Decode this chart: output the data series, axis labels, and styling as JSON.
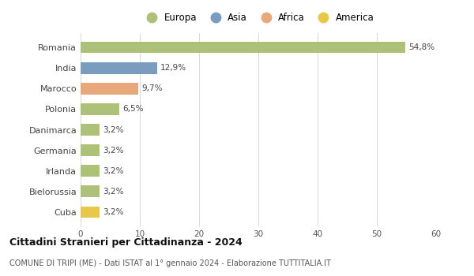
{
  "categories": [
    "Romania",
    "India",
    "Marocco",
    "Polonia",
    "Danimarca",
    "Germania",
    "Irlanda",
    "Bielorussia",
    "Cuba"
  ],
  "values": [
    54.8,
    12.9,
    9.7,
    6.5,
    3.2,
    3.2,
    3.2,
    3.2,
    3.2
  ],
  "labels": [
    "54,8%",
    "12,9%",
    "9,7%",
    "6,5%",
    "3,2%",
    "3,2%",
    "3,2%",
    "3,2%",
    "3,2%"
  ],
  "colors": [
    "#adc178",
    "#7a9cbf",
    "#e8a87c",
    "#adc178",
    "#adc178",
    "#adc178",
    "#adc178",
    "#adc178",
    "#e8c84a"
  ],
  "legend_labels": [
    "Europa",
    "Asia",
    "Africa",
    "America"
  ],
  "legend_colors": [
    "#adc178",
    "#7a9cbf",
    "#e8a87c",
    "#e8c84a"
  ],
  "xlim": [
    0,
    60
  ],
  "xticks": [
    0,
    10,
    20,
    30,
    40,
    50,
    60
  ],
  "title": "Cittadini Stranieri per Cittadinanza - 2024",
  "subtitle": "COMUNE DI TRIPI (ME) - Dati ISTAT al 1° gennaio 2024 - Elaborazione TUTTITALIA.IT",
  "background_color": "#ffffff",
  "grid_color": "#d8d8d8"
}
